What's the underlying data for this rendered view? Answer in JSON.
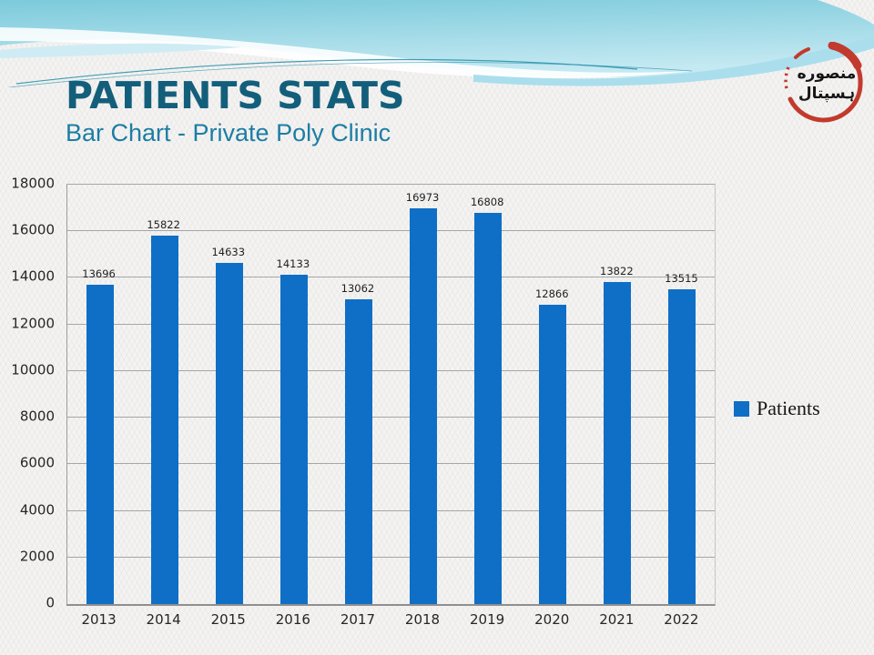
{
  "slide": {
    "title": "PATIENTS STATS",
    "subtitle": "Bar Chart - Private Poly Clinic"
  },
  "logo": {
    "line1": "منصوره",
    "line2": "ہسپتال",
    "ring_color": "#c23a2d",
    "text_color": "#151515"
  },
  "theme": {
    "title_color": "#135f7b",
    "subtitle_color": "#1d7da4",
    "accent_blue": "#0f6fc6"
  },
  "chart_data": {
    "type": "bar",
    "title": "",
    "xlabel": "",
    "ylabel": "",
    "categories": [
      "2013",
      "2014",
      "2015",
      "2016",
      "2017",
      "2018",
      "2019",
      "2020",
      "2021",
      "2022"
    ],
    "series": [
      {
        "name": "Patients",
        "values": [
          13696,
          15822,
          14633,
          14133,
          13062,
          16973,
          16808,
          12866,
          13822,
          13515
        ]
      }
    ],
    "ylim": [
      0,
      18000
    ],
    "ytick_step": 2000,
    "bar_color": "#0f6fc6",
    "grid": true,
    "data_labels": true,
    "legend_position": "right"
  }
}
